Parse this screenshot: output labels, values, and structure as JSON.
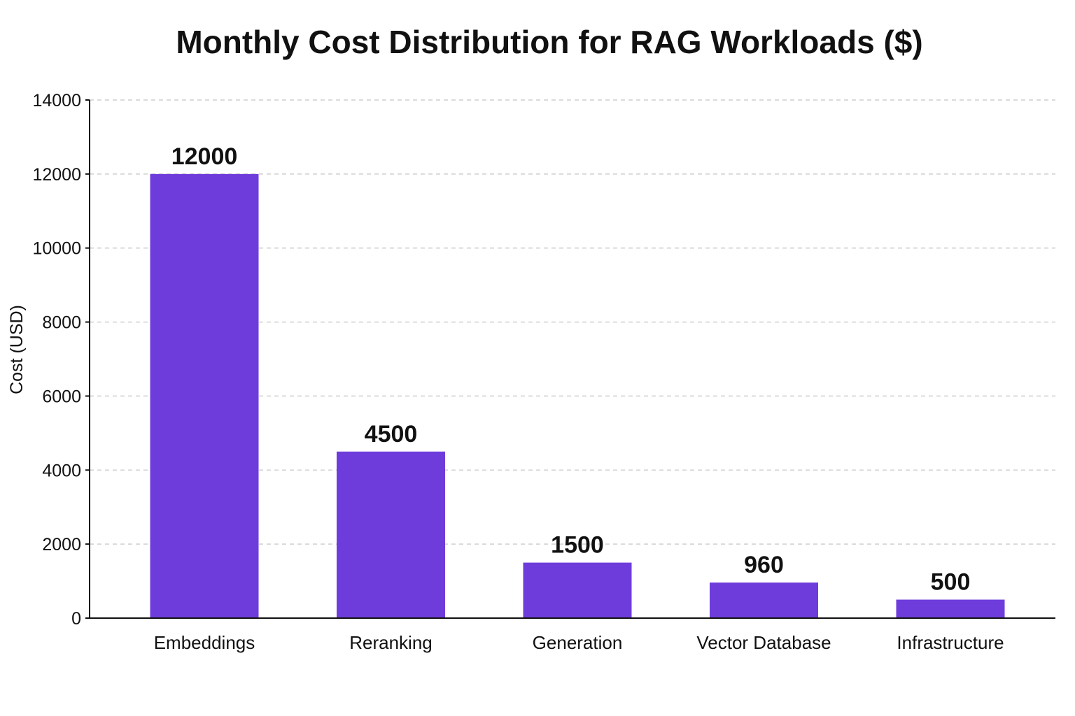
{
  "chart_data": {
    "type": "bar",
    "title": "Monthly Cost Distribution for RAG Workloads ($)",
    "xlabel": "",
    "ylabel": "Cost (USD)",
    "categories": [
      "Embeddings",
      "Reranking",
      "Generation",
      "Vector Database",
      "Infrastructure"
    ],
    "values": [
      12000,
      4500,
      1500,
      960,
      500
    ],
    "value_labels": [
      "12000",
      "4500",
      "1500",
      "960",
      "500"
    ],
    "ylim": [
      0,
      14000
    ],
    "yticks": [
      0,
      2000,
      4000,
      6000,
      8000,
      10000,
      12000,
      14000
    ],
    "ytick_labels": [
      "0",
      "2000",
      "4000",
      "6000",
      "8000",
      "10000",
      "12000",
      "14000"
    ],
    "grid": "horizontal-dashed",
    "legend": "none",
    "bar_color": "#6f3cdc",
    "grid_color": "#cfcfcf",
    "axis_color": "#111111"
  }
}
